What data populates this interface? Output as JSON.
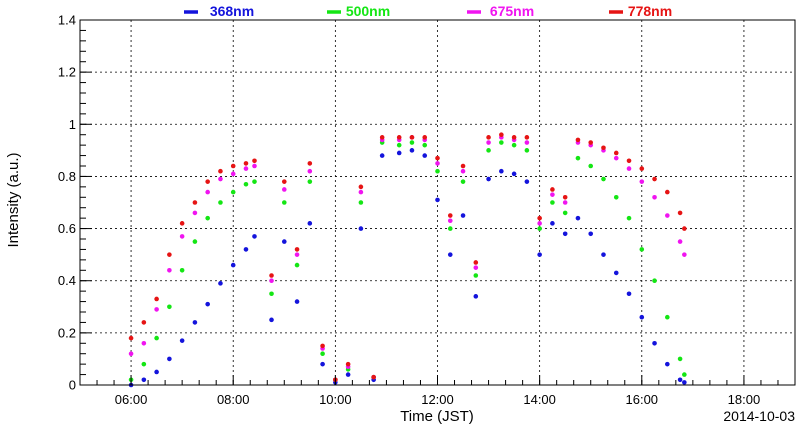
{
  "chart_data": {
    "type": "scatter",
    "xlabel": "Time (JST)",
    "ylabel": "Intensity (a.u.)",
    "date": "2014-10-03",
    "xlim": [
      "05:00",
      "19:00"
    ],
    "ylim": [
      0,
      1.4
    ],
    "x_ticks": [
      "06:00",
      "08:00",
      "10:00",
      "12:00",
      "14:00",
      "16:00",
      "18:00"
    ],
    "y_ticks": [
      "0",
      "0.2",
      "0.4",
      "0.6",
      "0.8",
      "1",
      "1.2",
      "1.4"
    ],
    "grid": true,
    "legend_position": "top",
    "series": [
      {
        "name": "368nm",
        "color": "#1414dc",
        "points": [
          [
            "06:00",
            0.0
          ],
          [
            "06:15",
            0.02
          ],
          [
            "06:30",
            0.05
          ],
          [
            "06:45",
            0.1
          ],
          [
            "07:00",
            0.17
          ],
          [
            "07:15",
            0.24
          ],
          [
            "07:30",
            0.31
          ],
          [
            "07:45",
            0.39
          ],
          [
            "08:00",
            0.46
          ],
          [
            "08:15",
            0.52
          ],
          [
            "08:25",
            0.57
          ],
          [
            "08:45",
            0.25
          ],
          [
            "09:00",
            0.55
          ],
          [
            "09:15",
            0.32
          ],
          [
            "09:30",
            0.62
          ],
          [
            "09:45",
            0.08
          ],
          [
            "10:00",
            0.01
          ],
          [
            "10:15",
            0.04
          ],
          [
            "10:30",
            0.6
          ],
          [
            "10:45",
            0.02
          ],
          [
            "10:55",
            0.88
          ],
          [
            "11:15",
            0.89
          ],
          [
            "11:30",
            0.9
          ],
          [
            "11:45",
            0.88
          ],
          [
            "12:00",
            0.71
          ],
          [
            "12:15",
            0.5
          ],
          [
            "12:30",
            0.65
          ],
          [
            "12:45",
            0.34
          ],
          [
            "13:00",
            0.79
          ],
          [
            "13:15",
            0.82
          ],
          [
            "13:30",
            0.81
          ],
          [
            "13:45",
            0.78
          ],
          [
            "14:00",
            0.5
          ],
          [
            "14:15",
            0.62
          ],
          [
            "14:30",
            0.58
          ],
          [
            "14:45",
            0.64
          ],
          [
            "15:00",
            0.58
          ],
          [
            "15:15",
            0.5
          ],
          [
            "15:30",
            0.43
          ],
          [
            "15:45",
            0.35
          ],
          [
            "16:00",
            0.26
          ],
          [
            "16:15",
            0.16
          ],
          [
            "16:30",
            0.08
          ],
          [
            "16:45",
            0.02
          ],
          [
            "16:50",
            0.01
          ]
        ]
      },
      {
        "name": "500nm",
        "color": "#14e614",
        "points": [
          [
            "06:00",
            0.02
          ],
          [
            "06:15",
            0.08
          ],
          [
            "06:30",
            0.18
          ],
          [
            "06:45",
            0.3
          ],
          [
            "07:00",
            0.44
          ],
          [
            "07:15",
            0.55
          ],
          [
            "07:30",
            0.64
          ],
          [
            "07:45",
            0.7
          ],
          [
            "08:00",
            0.74
          ],
          [
            "08:15",
            0.77
          ],
          [
            "08:25",
            0.78
          ],
          [
            "08:45",
            0.35
          ],
          [
            "09:00",
            0.7
          ],
          [
            "09:15",
            0.46
          ],
          [
            "09:30",
            0.78
          ],
          [
            "09:45",
            0.12
          ],
          [
            "10:00",
            0.02
          ],
          [
            "10:15",
            0.06
          ],
          [
            "10:30",
            0.7
          ],
          [
            "10:45",
            0.03
          ],
          [
            "10:55",
            0.93
          ],
          [
            "11:15",
            0.92
          ],
          [
            "11:30",
            0.93
          ],
          [
            "11:45",
            0.92
          ],
          [
            "12:00",
            0.82
          ],
          [
            "12:15",
            0.6
          ],
          [
            "12:30",
            0.78
          ],
          [
            "12:45",
            0.42
          ],
          [
            "13:00",
            0.9
          ],
          [
            "13:15",
            0.93
          ],
          [
            "13:30",
            0.92
          ],
          [
            "13:45",
            0.9
          ],
          [
            "14:00",
            0.6
          ],
          [
            "14:15",
            0.7
          ],
          [
            "14:30",
            0.66
          ],
          [
            "14:45",
            0.87
          ],
          [
            "15:00",
            0.84
          ],
          [
            "15:15",
            0.79
          ],
          [
            "15:30",
            0.72
          ],
          [
            "15:45",
            0.64
          ],
          [
            "16:00",
            0.52
          ],
          [
            "16:15",
            0.4
          ],
          [
            "16:30",
            0.26
          ],
          [
            "16:45",
            0.1
          ],
          [
            "16:50",
            0.04
          ]
        ]
      },
      {
        "name": "675nm",
        "color": "#f014f0",
        "points": [
          [
            "06:00",
            0.12
          ],
          [
            "06:15",
            0.16
          ],
          [
            "06:30",
            0.29
          ],
          [
            "06:45",
            0.44
          ],
          [
            "07:00",
            0.57
          ],
          [
            "07:15",
            0.66
          ],
          [
            "07:30",
            0.74
          ],
          [
            "07:45",
            0.79
          ],
          [
            "08:00",
            0.81
          ],
          [
            "08:15",
            0.83
          ],
          [
            "08:25",
            0.84
          ],
          [
            "08:45",
            0.4
          ],
          [
            "09:00",
            0.75
          ],
          [
            "09:15",
            0.5
          ],
          [
            "09:30",
            0.82
          ],
          [
            "09:45",
            0.14
          ],
          [
            "10:00",
            0.02
          ],
          [
            "10:15",
            0.07
          ],
          [
            "10:30",
            0.74
          ],
          [
            "10:45",
            0.03
          ],
          [
            "10:55",
            0.94
          ],
          [
            "11:15",
            0.94
          ],
          [
            "11:30",
            0.95
          ],
          [
            "11:45",
            0.94
          ],
          [
            "12:00",
            0.85
          ],
          [
            "12:15",
            0.63
          ],
          [
            "12:30",
            0.82
          ],
          [
            "12:45",
            0.45
          ],
          [
            "13:00",
            0.93
          ],
          [
            "13:15",
            0.95
          ],
          [
            "13:30",
            0.94
          ],
          [
            "13:45",
            0.93
          ],
          [
            "14:00",
            0.62
          ],
          [
            "14:15",
            0.73
          ],
          [
            "14:30",
            0.7
          ],
          [
            "14:45",
            0.93
          ],
          [
            "15:00",
            0.92
          ],
          [
            "15:15",
            0.9
          ],
          [
            "15:30",
            0.87
          ],
          [
            "15:45",
            0.83
          ],
          [
            "16:00",
            0.78
          ],
          [
            "16:15",
            0.72
          ],
          [
            "16:30",
            0.65
          ],
          [
            "16:45",
            0.55
          ],
          [
            "16:50",
            0.5
          ]
        ]
      },
      {
        "name": "778nm",
        "color": "#e61414",
        "points": [
          [
            "06:00",
            0.18
          ],
          [
            "06:15",
            0.24
          ],
          [
            "06:30",
            0.33
          ],
          [
            "06:45",
            0.5
          ],
          [
            "07:00",
            0.62
          ],
          [
            "07:15",
            0.7
          ],
          [
            "07:30",
            0.78
          ],
          [
            "07:45",
            0.82
          ],
          [
            "08:00",
            0.84
          ],
          [
            "08:15",
            0.85
          ],
          [
            "08:25",
            0.86
          ],
          [
            "08:45",
            0.42
          ],
          [
            "09:00",
            0.78
          ],
          [
            "09:15",
            0.52
          ],
          [
            "09:30",
            0.85
          ],
          [
            "09:45",
            0.15
          ],
          [
            "10:00",
            0.02
          ],
          [
            "10:15",
            0.08
          ],
          [
            "10:30",
            0.76
          ],
          [
            "10:45",
            0.03
          ],
          [
            "10:55",
            0.95
          ],
          [
            "11:15",
            0.95
          ],
          [
            "11:30",
            0.95
          ],
          [
            "11:45",
            0.95
          ],
          [
            "12:00",
            0.87
          ],
          [
            "12:15",
            0.65
          ],
          [
            "12:30",
            0.84
          ],
          [
            "12:45",
            0.47
          ],
          [
            "13:00",
            0.95
          ],
          [
            "13:15",
            0.96
          ],
          [
            "13:30",
            0.95
          ],
          [
            "13:45",
            0.95
          ],
          [
            "14:00",
            0.64
          ],
          [
            "14:15",
            0.75
          ],
          [
            "14:30",
            0.72
          ],
          [
            "14:45",
            0.94
          ],
          [
            "15:00",
            0.93
          ],
          [
            "15:15",
            0.91
          ],
          [
            "15:30",
            0.89
          ],
          [
            "15:45",
            0.86
          ],
          [
            "16:00",
            0.83
          ],
          [
            "16:15",
            0.79
          ],
          [
            "16:30",
            0.74
          ],
          [
            "16:45",
            0.66
          ],
          [
            "16:50",
            0.6
          ]
        ]
      }
    ]
  }
}
